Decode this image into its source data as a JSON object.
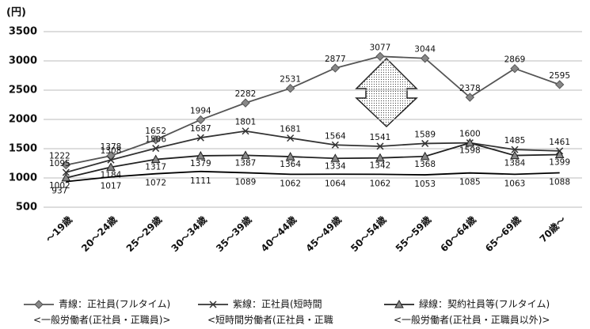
{
  "chart_data": {
    "type": "line",
    "y_label": "(円)",
    "categories": [
      "～19歳",
      "20～24歳",
      "25～29歳",
      "30～34歳",
      "35～39歳",
      "40～44歳",
      "45～49歳",
      "50～54歳",
      "55～59歳",
      "60～64歳",
      "65～69歳",
      "70歳～"
    ],
    "series": [
      {
        "name": "青線：正社員(フルタイム)",
        "note": "<一般労働者(正社員・正職員)>",
        "color": "#555",
        "marker": "diamond",
        "values": [
          1222,
          1378,
          1652,
          1994,
          2282,
          2531,
          2877,
          3077,
          3044,
          2378,
          2869,
          2595
        ]
      },
      {
        "name": "紫線：正社員(短時間",
        "note": "<短時間労働者(正社員・正職",
        "color": "#333",
        "marker": "x",
        "values": [
          1095,
          1308,
          1506,
          1687,
          1801,
          1681,
          1564,
          1541,
          1589,
          1600,
          1485,
          1461
        ]
      },
      {
        "name": "緑線：契約社員等(フルタイム)",
        "note": "<一般労働者(正社員・正職員以外)>",
        "color": "#222",
        "marker": "triangle",
        "values": [
          1002,
          1184,
          1317,
          1379,
          1387,
          1364,
          1334,
          1342,
          1368,
          1598,
          1384,
          1399
        ]
      },
      {
        "color": "#000",
        "marker": "none",
        "values": [
          937,
          1017,
          1072,
          1111,
          1089,
          1062,
          1064,
          1062,
          1053,
          1085,
          1063,
          1088
        ]
      }
    ],
    "ylim": [
      500,
      3500
    ],
    "yticks": [
      500,
      1000,
      1500,
      2000,
      2500,
      3000,
      3500
    ],
    "grid": true
  }
}
